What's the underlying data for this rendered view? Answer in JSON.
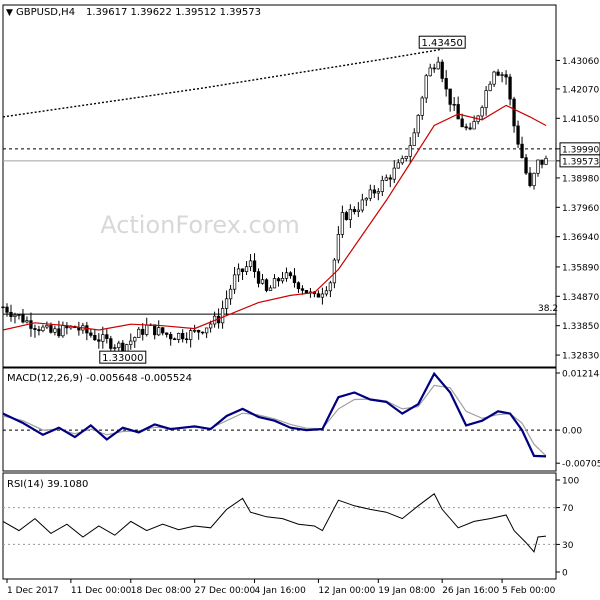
{
  "header": {
    "symbol_label": "GBPUSD,H4",
    "ohlc": "1.39617 1.39622 1.39512 1.39573"
  },
  "watermark": "ActionForex.com",
  "colors": {
    "background": "#ffffff",
    "frame": "#000000",
    "candles": "#000000",
    "ma_short": "#cc0000",
    "ma_long": "#000000",
    "macd_line": "#000080",
    "macd_signal": "#a0a0a0",
    "rsi_line": "#000000",
    "level_line": "#000000",
    "watermark": "#d8d8d8"
  },
  "chart_data": [
    {
      "type": "candlestick",
      "name": "price",
      "ylim": [
        1.3245,
        1.4495
      ],
      "y_ticks": [
        "1.43060",
        "1.42070",
        "1.41050",
        "1.39990",
        "1.39573",
        "1.38980",
        "1.37960",
        "1.36940",
        "1.35890",
        "1.34870",
        "1.33850",
        "1.32830"
      ],
      "y_tick_values": [
        1.4306,
        1.4207,
        1.4105,
        1.3999,
        1.39573,
        1.3898,
        1.3796,
        1.3694,
        1.3589,
        1.3487,
        1.3385,
        1.3283
      ],
      "highlighted_ticks": [
        "1.39990",
        "1.39573"
      ],
      "annotations": [
        {
          "label": "1.43450",
          "x": 110,
          "y": 1.4345
        },
        {
          "label": "1.33000",
          "x": 30,
          "y": 1.33
        }
      ],
      "horizontal_lines": [
        {
          "value": 1.3999,
          "style": "dashed"
        },
        {
          "value": 1.39573,
          "style": "solid",
          "color": "#a0a0a0"
        },
        {
          "value": 1.3425,
          "style": "solid",
          "label": "38.2"
        }
      ],
      "long_ma": [
        [
          0,
          1.411
        ],
        [
          50,
          1.421
        ],
        [
          95,
          1.431
        ],
        [
          110,
          1.4345
        ]
      ],
      "ma_short": [
        [
          0,
          1.337
        ],
        [
          8,
          1.3395
        ],
        [
          16,
          1.3385
        ],
        [
          24,
          1.337
        ],
        [
          32,
          1.339
        ],
        [
          40,
          1.3385
        ],
        [
          48,
          1.3375
        ],
        [
          56,
          1.342
        ],
        [
          64,
          1.3465
        ],
        [
          72,
          1.349
        ],
        [
          78,
          1.35
        ],
        [
          84,
          1.358
        ],
        [
          90,
          1.37
        ],
        [
          96,
          1.382
        ],
        [
          102,
          1.395
        ],
        [
          108,
          1.408
        ],
        [
          114,
          1.412
        ],
        [
          120,
          1.41
        ],
        [
          126,
          1.415
        ],
        [
          132,
          1.411
        ],
        [
          136,
          1.408
        ]
      ],
      "close_path": [
        [
          0,
          1.345
        ],
        [
          6,
          1.34
        ],
        [
          12,
          1.336
        ],
        [
          18,
          1.338
        ],
        [
          24,
          1.334
        ],
        [
          30,
          1.331
        ],
        [
          36,
          1.338
        ],
        [
          42,
          1.335
        ],
        [
          48,
          1.336
        ],
        [
          54,
          1.341
        ],
        [
          58,
          1.355
        ],
        [
          62,
          1.36
        ],
        [
          66,
          1.35
        ],
        [
          70,
          1.356
        ],
        [
          74,
          1.353
        ],
        [
          78,
          1.348
        ],
        [
          82,
          1.354
        ],
        [
          85,
          1.376
        ],
        [
          90,
          1.381
        ],
        [
          95,
          1.388
        ],
        [
          100,
          1.395
        ],
        [
          103,
          1.405
        ],
        [
          106,
          1.425
        ],
        [
          109,
          1.432
        ],
        [
          111,
          1.42
        ],
        [
          114,
          1.41
        ],
        [
          117,
          1.405
        ],
        [
          120,
          1.416
        ],
        [
          123,
          1.428
        ],
        [
          126,
          1.425
        ],
        [
          128,
          1.408
        ],
        [
          130,
          1.397
        ],
        [
          132,
          1.386
        ],
        [
          134,
          1.395
        ],
        [
          136,
          1.3957
        ]
      ]
    },
    {
      "type": "line",
      "name": "MACD",
      "label": "MACD(12,26,9) -0.005648 -0.005524",
      "ylim": [
        -0.0085,
        0.013
      ],
      "y_ticks": [
        "0.012148",
        "0.00",
        "-0.007051"
      ],
      "y_tick_values": [
        0.012148,
        0.0,
        -0.007051
      ],
      "macd": [
        [
          0,
          0.0035
        ],
        [
          5,
          0.0015
        ],
        [
          10,
          -0.001
        ],
        [
          14,
          0.0005
        ],
        [
          18,
          -0.0015
        ],
        [
          22,
          0.001
        ],
        [
          26,
          -0.002
        ],
        [
          30,
          0.0005
        ],
        [
          34,
          -0.0005
        ],
        [
          38,
          0.0012
        ],
        [
          42,
          0.0002
        ],
        [
          48,
          0.0008
        ],
        [
          52,
          0.0002
        ],
        [
          56,
          0.003
        ],
        [
          60,
          0.0045
        ],
        [
          64,
          0.0028
        ],
        [
          68,
          0.002
        ],
        [
          72,
          0.0005
        ],
        [
          76,
          0.0
        ],
        [
          80,
          0.0002
        ],
        [
          84,
          0.007
        ],
        [
          88,
          0.008
        ],
        [
          92,
          0.0065
        ],
        [
          96,
          0.006
        ],
        [
          100,
          0.0035
        ],
        [
          104,
          0.0055
        ],
        [
          108,
          0.012
        ],
        [
          112,
          0.008
        ],
        [
          116,
          0.001
        ],
        [
          120,
          0.002
        ],
        [
          124,
          0.004
        ],
        [
          127,
          0.0035
        ],
        [
          130,
          0.0
        ],
        [
          133,
          -0.0055
        ],
        [
          136,
          -0.0056
        ]
      ],
      "signal": [
        [
          0,
          0.003
        ],
        [
          5,
          0.002
        ],
        [
          10,
          0.0
        ],
        [
          14,
          0.0002
        ],
        [
          18,
          -0.0008
        ],
        [
          22,
          0.0002
        ],
        [
          26,
          -0.001
        ],
        [
          30,
          -0.0003
        ],
        [
          34,
          -0.0002
        ],
        [
          38,
          0.0006
        ],
        [
          42,
          0.0004
        ],
        [
          48,
          0.0006
        ],
        [
          52,
          0.0004
        ],
        [
          56,
          0.002
        ],
        [
          60,
          0.0036
        ],
        [
          64,
          0.0032
        ],
        [
          68,
          0.0024
        ],
        [
          72,
          0.0012
        ],
        [
          76,
          0.0004
        ],
        [
          80,
          0.0003
        ],
        [
          84,
          0.0045
        ],
        [
          88,
          0.0065
        ],
        [
          92,
          0.0066
        ],
        [
          96,
          0.0062
        ],
        [
          100,
          0.0045
        ],
        [
          104,
          0.005
        ],
        [
          108,
          0.0095
        ],
        [
          112,
          0.009
        ],
        [
          116,
          0.004
        ],
        [
          120,
          0.0025
        ],
        [
          124,
          0.0033
        ],
        [
          127,
          0.0035
        ],
        [
          130,
          0.0015
        ],
        [
          133,
          -0.003
        ],
        [
          136,
          -0.0055
        ]
      ]
    },
    {
      "type": "line",
      "name": "RSI",
      "label": "RSI(14) 39.1080",
      "ylim": [
        0,
        100
      ],
      "y_ticks": [
        "100",
        "70",
        "30",
        "0"
      ],
      "y_tick_values": [
        100,
        70,
        30,
        0
      ],
      "reference_lines": [
        70,
        30
      ],
      "rsi": [
        [
          0,
          55
        ],
        [
          4,
          45
        ],
        [
          8,
          58
        ],
        [
          12,
          42
        ],
        [
          16,
          52
        ],
        [
          20,
          38
        ],
        [
          24,
          50
        ],
        [
          28,
          40
        ],
        [
          32,
          55
        ],
        [
          36,
          45
        ],
        [
          40,
          52
        ],
        [
          44,
          46
        ],
        [
          48,
          50
        ],
        [
          52,
          48
        ],
        [
          56,
          68
        ],
        [
          60,
          80
        ],
        [
          62,
          65
        ],
        [
          66,
          60
        ],
        [
          70,
          58
        ],
        [
          74,
          52
        ],
        [
          78,
          50
        ],
        [
          80,
          45
        ],
        [
          84,
          78
        ],
        [
          88,
          72
        ],
        [
          92,
          68
        ],
        [
          96,
          65
        ],
        [
          100,
          58
        ],
        [
          104,
          72
        ],
        [
          108,
          85
        ],
        [
          110,
          68
        ],
        [
          114,
          48
        ],
        [
          118,
          55
        ],
        [
          122,
          58
        ],
        [
          126,
          62
        ],
        [
          128,
          45
        ],
        [
          131,
          32
        ],
        [
          133,
          22
        ],
        [
          134,
          38
        ],
        [
          136,
          39
        ]
      ]
    }
  ],
  "x_axis": {
    "domain": [
      0,
      136
    ],
    "labels": [
      {
        "text": "1 Dec 2017",
        "x": 1
      },
      {
        "text": "11 Dec 00:00",
        "x": 17
      },
      {
        "text": "18 Dec 08:00",
        "x": 32
      },
      {
        "text": "27 Dec 00:00",
        "x": 48
      },
      {
        "text": "4 Jan 16:00",
        "x": 63
      },
      {
        "text": "12 Jan 00:00",
        "x": 79
      },
      {
        "text": "19 Jan 08:00",
        "x": 94
      },
      {
        "text": "26 Jan 16:00",
        "x": 110
      },
      {
        "text": "5 Feb 00:00",
        "x": 125
      }
    ]
  }
}
